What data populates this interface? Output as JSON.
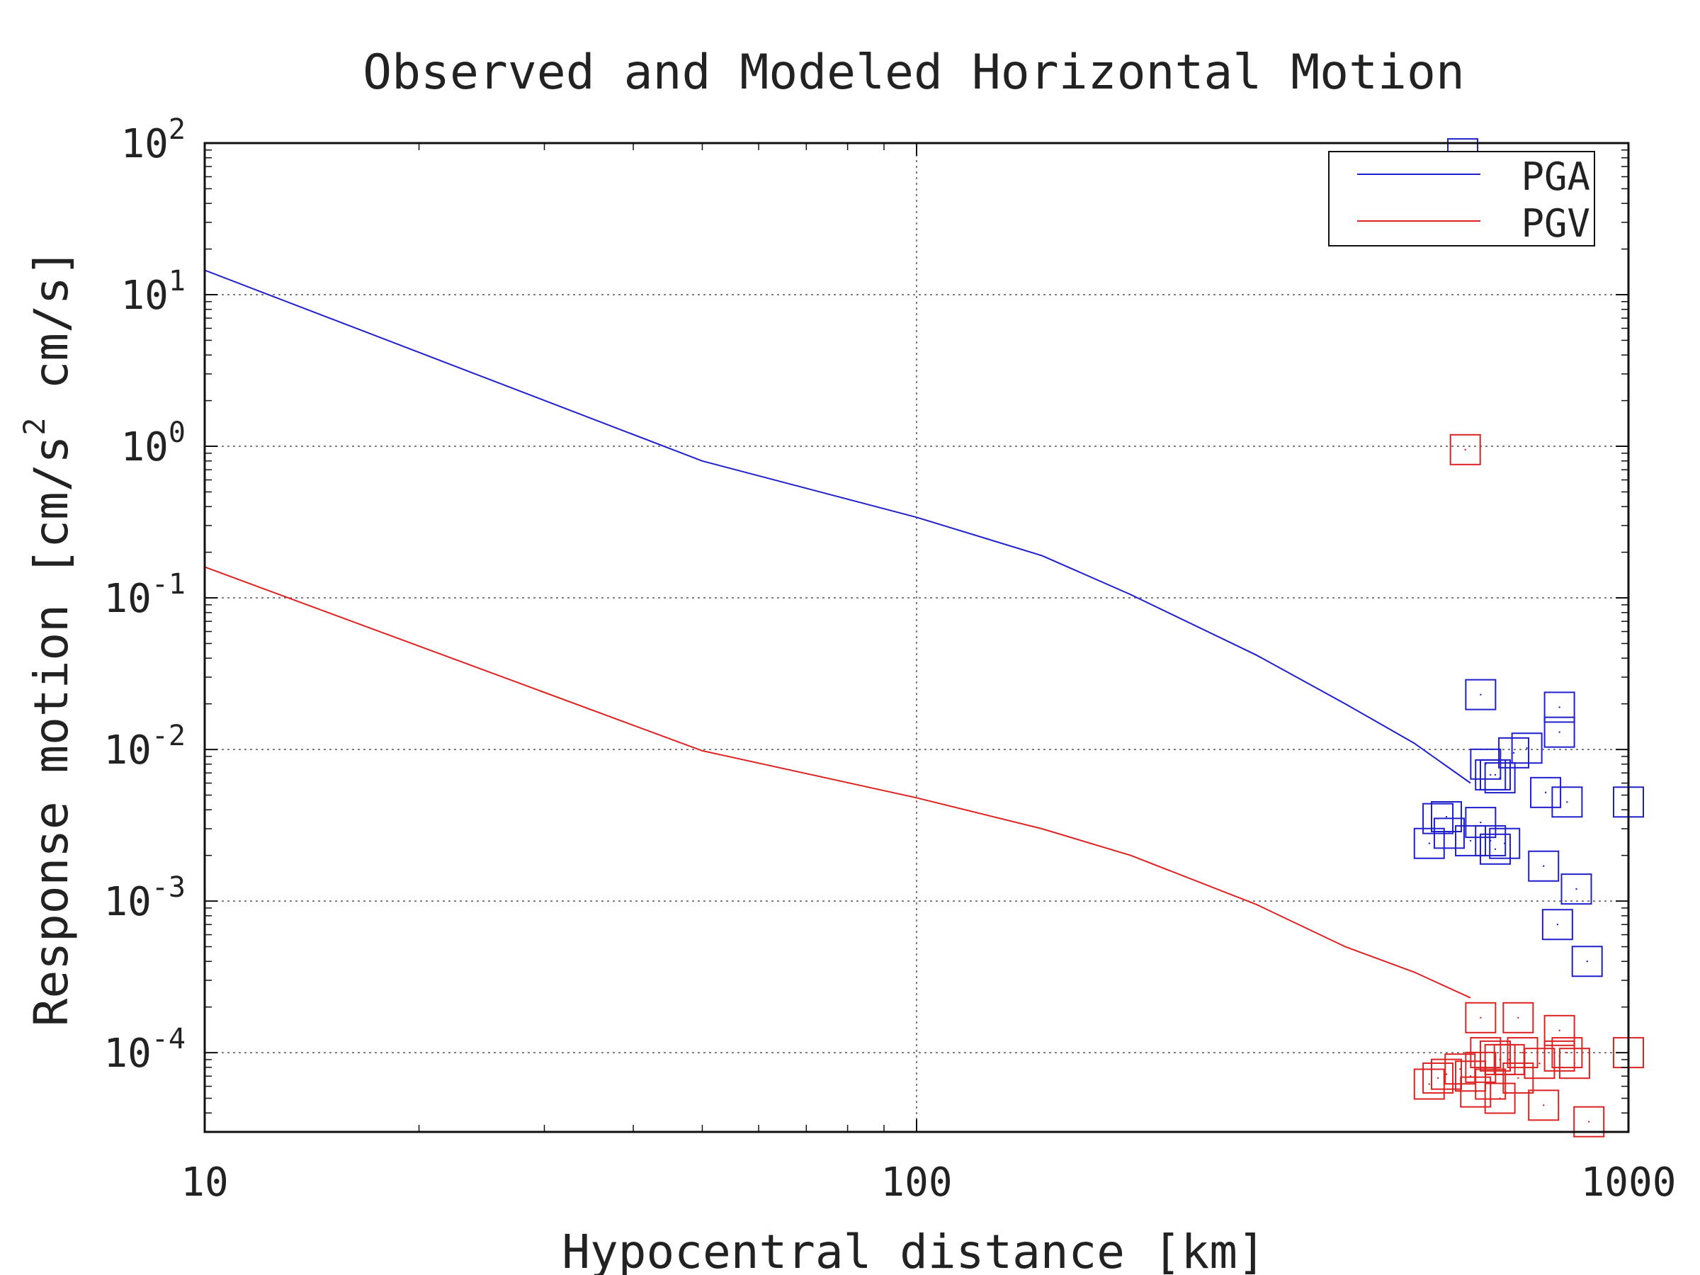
{
  "chart_data": {
    "type": "scatter",
    "title": "Observed and Modeled Horizontal Motion",
    "xlabel": "Hypocentral distance [km]",
    "ylabel": "Response motion [cm/s",
    "ylabel_sup": "2",
    "ylabel_tail": "cm/s]",
    "xscale": "log",
    "yscale": "log",
    "xlim": [
      10,
      1000
    ],
    "ylim": [
      3e-05,
      100
    ],
    "grid": true,
    "legend_position": "top-right",
    "x_ticks": [
      {
        "value": 10,
        "label": "10"
      },
      {
        "value": 100,
        "label": "100"
      },
      {
        "value": 1000,
        "label": "1000"
      }
    ],
    "y_ticks": [
      {
        "value": 100,
        "base": "10",
        "exp": "2"
      },
      {
        "value": 10,
        "base": "10",
        "exp": "1"
      },
      {
        "value": 1,
        "base": "10",
        "exp": "0"
      },
      {
        "value": 0.1,
        "base": "10",
        "exp": "-1"
      },
      {
        "value": 0.01,
        "base": "10",
        "exp": "-2"
      },
      {
        "value": 0.001,
        "base": "10",
        "exp": "-3"
      },
      {
        "value": 0.0001,
        "base": "10",
        "exp": "-4"
      }
    ],
    "series": [
      {
        "name": "PGA",
        "color": "#1f1fcc",
        "line": {
          "x": [
            10,
            50,
            100,
            150,
            200,
            300,
            400,
            500,
            600
          ],
          "y": [
            14.5,
            0.8,
            0.34,
            0.19,
            0.105,
            0.042,
            0.02,
            0.011,
            0.006
          ]
        },
        "points": {
          "x": [
            585,
            620,
            630,
            640,
            650,
            660,
            690,
            720,
            765,
            800,
            800,
            820,
            760,
            620,
            640,
            670,
            650,
            540,
            555,
            560,
            600,
            525,
            845,
            795,
            875,
            1000
          ],
          "y": [
            85,
            0.023,
            0.008,
            0.0068,
            0.0068,
            0.0065,
            0.0095,
            0.0102,
            0.0052,
            0.019,
            0.013,
            0.0045,
            0.0017,
            0.0033,
            0.0025,
            0.0024,
            0.0022,
            0.0035,
            0.0036,
            0.0028,
            0.0025,
            0.0024,
            0.0012,
            0.0007,
            0.0004,
            0.0045
          ]
        }
      },
      {
        "name": "PGV",
        "color": "#dd2222",
        "line": {
          "x": [
            10,
            50,
            100,
            150,
            200,
            300,
            400,
            500,
            600
          ],
          "y": [
            0.16,
            0.0098,
            0.0048,
            0.003,
            0.002,
            0.00095,
            0.0005,
            0.00034,
            0.00023
          ]
        },
        "points": {
          "x": [
            590,
            620,
            700,
            800,
            630,
            650,
            660,
            680,
            710,
            750,
            800,
            820,
            840,
            1000,
            525,
            540,
            555,
            580,
            600,
            610,
            620,
            640,
            660,
            700,
            760,
            880
          ],
          "y": [
            0.95,
            0.00017,
            0.00017,
            0.00014,
            0.0001,
            9.5e-05,
            9e-05,
            9e-05,
            0.0001,
            8.5e-05,
            9.5e-05,
            0.0001,
            8.5e-05,
            0.0001,
            6.2e-05,
            6.8e-05,
            7.2e-05,
            7.8e-05,
            7e-05,
            5.5e-05,
            8e-05,
            6.2e-05,
            5e-05,
            6.8e-05,
            4.5e-05,
            3.5e-05
          ]
        }
      }
    ]
  }
}
